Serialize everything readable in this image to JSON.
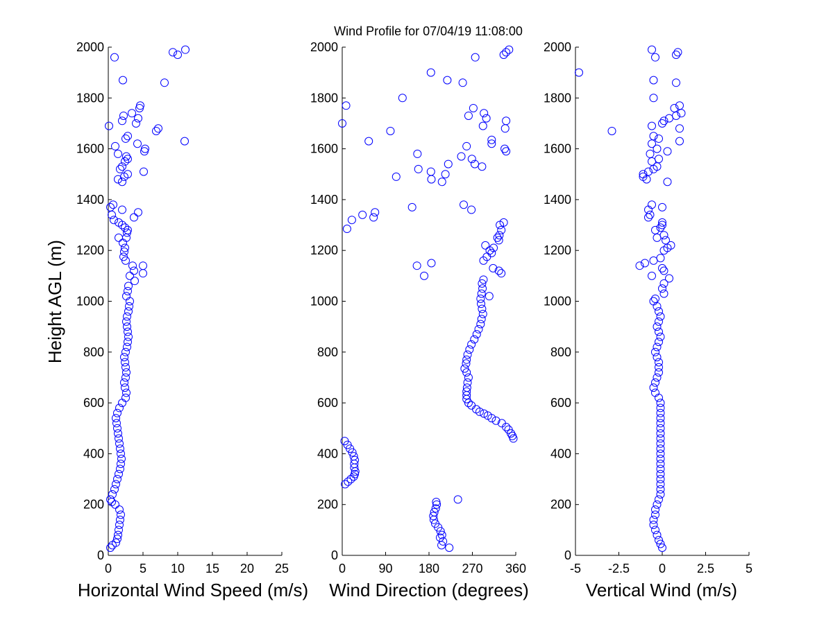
{
  "figure": {
    "title": "Wind Profile for  07/04/19 11:08:00",
    "ylabel": "Height AGL (m)"
  },
  "chart_data": [
    {
      "type": "scatter",
      "xlabel": "Horizontal Wind Speed (m/s)",
      "ylabel": "Height AGL (m)",
      "xlim": [
        0,
        25
      ],
      "ylim": [
        0,
        2000
      ],
      "xticks": [
        "0",
        "5",
        "10",
        "15",
        "20",
        "25"
      ],
      "yticks": [
        "0",
        "200",
        "400",
        "600",
        "800",
        "1000",
        "1200",
        "1400",
        "1600",
        "1800",
        "2000"
      ],
      "marker_color": "#0000ff",
      "points": [
        [
          0.3,
          30
        ],
        [
          0.6,
          40
        ],
        [
          1.1,
          50
        ],
        [
          1.3,
          65
        ],
        [
          1.4,
          80
        ],
        [
          1.5,
          100
        ],
        [
          1.6,
          120
        ],
        [
          1.7,
          140
        ],
        [
          1.8,
          160
        ],
        [
          1.6,
          180
        ],
        [
          1.0,
          200
        ],
        [
          0.5,
          210
        ],
        [
          0.3,
          220
        ],
        [
          0.6,
          240
        ],
        [
          0.9,
          260
        ],
        [
          1.1,
          280
        ],
        [
          1.3,
          300
        ],
        [
          1.5,
          320
        ],
        [
          1.7,
          340
        ],
        [
          1.8,
          360
        ],
        [
          1.9,
          380
        ],
        [
          1.8,
          400
        ],
        [
          1.7,
          420
        ],
        [
          1.6,
          440
        ],
        [
          1.5,
          460
        ],
        [
          1.4,
          480
        ],
        [
          1.3,
          500
        ],
        [
          1.2,
          520
        ],
        [
          1.1,
          540
        ],
        [
          1.3,
          560
        ],
        [
          1.6,
          580
        ],
        [
          2.0,
          600
        ],
        [
          2.5,
          620
        ],
        [
          2.6,
          640
        ],
        [
          2.4,
          660
        ],
        [
          2.3,
          680
        ],
        [
          2.5,
          700
        ],
        [
          2.6,
          720
        ],
        [
          2.5,
          740
        ],
        [
          2.4,
          760
        ],
        [
          2.3,
          780
        ],
        [
          2.5,
          800
        ],
        [
          2.7,
          820
        ],
        [
          2.8,
          840
        ],
        [
          2.9,
          860
        ],
        [
          2.8,
          880
        ],
        [
          2.7,
          900
        ],
        [
          2.6,
          920
        ],
        [
          2.7,
          940
        ],
        [
          2.9,
          960
        ],
        [
          3.0,
          980
        ],
        [
          3.1,
          1000
        ],
        [
          2.6,
          1020
        ],
        [
          2.8,
          1040
        ],
        [
          2.9,
          1060
        ],
        [
          3.8,
          1080
        ],
        [
          3.1,
          1100
        ],
        [
          5.0,
          1110
        ],
        [
          3.7,
          1120
        ],
        [
          5.0,
          1140
        ],
        [
          3.5,
          1140
        ],
        [
          2.5,
          1160
        ],
        [
          2.2,
          1175
        ],
        [
          2.3,
          1195
        ],
        [
          2.4,
          1210
        ],
        [
          2.1,
          1230
        ],
        [
          2.6,
          1250
        ],
        [
          1.5,
          1250
        ],
        [
          2.7,
          1270
        ],
        [
          2.8,
          1280
        ],
        [
          2.4,
          1290
        ],
        [
          2.0,
          1300
        ],
        [
          1.5,
          1310
        ],
        [
          0.8,
          1320
        ],
        [
          3.7,
          1330
        ],
        [
          0.5,
          1340
        ],
        [
          4.3,
          1350
        ],
        [
          2.0,
          1360
        ],
        [
          0.3,
          1370
        ],
        [
          0.7,
          1380
        ],
        [
          2.0,
          1470
        ],
        [
          1.4,
          1480
        ],
        [
          2.3,
          1490
        ],
        [
          2.8,
          1500
        ],
        [
          5.1,
          1510
        ],
        [
          1.7,
          1520
        ],
        [
          2.0,
          1530
        ],
        [
          2.4,
          1550
        ],
        [
          2.8,
          1560
        ],
        [
          2.6,
          1570
        ],
        [
          1.4,
          1580
        ],
        [
          5.2,
          1590
        ],
        [
          5.3,
          1600
        ],
        [
          1.0,
          1610
        ],
        [
          4.2,
          1620
        ],
        [
          11.0,
          1630
        ],
        [
          2.8,
          1650
        ],
        [
          2.5,
          1640
        ],
        [
          7.2,
          1680
        ],
        [
          6.9,
          1670
        ],
        [
          0.1,
          1690
        ],
        [
          4.0,
          1700
        ],
        [
          2.0,
          1710
        ],
        [
          4.3,
          1720
        ],
        [
          2.2,
          1730
        ],
        [
          3.4,
          1740
        ],
        [
          4.5,
          1760
        ],
        [
          4.6,
          1770
        ],
        [
          8.1,
          1860
        ],
        [
          2.1,
          1870
        ],
        [
          0.9,
          1960
        ],
        [
          9.3,
          1980
        ],
        [
          10.0,
          1970
        ],
        [
          11.1,
          1990
        ]
      ]
    },
    {
      "type": "scatter",
      "xlabel": "Wind Direction (degrees)",
      "xlim": [
        0,
        360
      ],
      "ylim": [
        0,
        2000
      ],
      "xticks": [
        "0",
        "90",
        "180",
        "270",
        "360"
      ],
      "yticks": [
        "0",
        "200",
        "400",
        "600",
        "800",
        "1000",
        "1200",
        "1400",
        "1600",
        "1800",
        "2000"
      ],
      "marker_color": "#0000ff",
      "points": [
        [
          222,
          30
        ],
        [
          206,
          40
        ],
        [
          209,
          55
        ],
        [
          203,
          70
        ],
        [
          207,
          80
        ],
        [
          204,
          95
        ],
        [
          199,
          110
        ],
        [
          193,
          125
        ],
        [
          190,
          140
        ],
        [
          189,
          155
        ],
        [
          191,
          170
        ],
        [
          194,
          185
        ],
        [
          196,
          200
        ],
        [
          195,
          210
        ],
        [
          240,
          220
        ],
        [
          6,
          280
        ],
        [
          12,
          290
        ],
        [
          18,
          300
        ],
        [
          24,
          310
        ],
        [
          26,
          320
        ],
        [
          27,
          330
        ],
        [
          25,
          345
        ],
        [
          25,
          360
        ],
        [
          26,
          375
        ],
        [
          24,
          390
        ],
        [
          21,
          405
        ],
        [
          16,
          420
        ],
        [
          11,
          435
        ],
        [
          5,
          450
        ],
        [
          355,
          460
        ],
        [
          353,
          470
        ],
        [
          350,
          480
        ],
        [
          345,
          495
        ],
        [
          340,
          505
        ],
        [
          331,
          520
        ],
        [
          319,
          530
        ],
        [
          310,
          540
        ],
        [
          302,
          550
        ],
        [
          294,
          558
        ],
        [
          285,
          565
        ],
        [
          278,
          575
        ],
        [
          268,
          590
        ],
        [
          262,
          600
        ],
        [
          258,
          615
        ],
        [
          258,
          630
        ],
        [
          258,
          645
        ],
        [
          259,
          660
        ],
        [
          260,
          680
        ],
        [
          262,
          700
        ],
        [
          258,
          720
        ],
        [
          254,
          735
        ],
        [
          257,
          755
        ],
        [
          258,
          770
        ],
        [
          260,
          790
        ],
        [
          264,
          810
        ],
        [
          268,
          830
        ],
        [
          274,
          850
        ],
        [
          279,
          870
        ],
        [
          283,
          890
        ],
        [
          287,
          910
        ],
        [
          289,
          930
        ],
        [
          292,
          950
        ],
        [
          290,
          970
        ],
        [
          288,
          990
        ],
        [
          287,
          1010
        ],
        [
          289,
          1030
        ],
        [
          291,
          1050
        ],
        [
          290,
          1070
        ],
        [
          293,
          1085
        ],
        [
          305,
          1020
        ],
        [
          330,
          1110
        ],
        [
          325,
          1120
        ],
        [
          313,
          1130
        ],
        [
          293,
          1160
        ],
        [
          300,
          1175
        ],
        [
          310,
          1190
        ],
        [
          306,
          1200
        ],
        [
          314,
          1210
        ],
        [
          297,
          1220
        ],
        [
          325,
          1240
        ],
        [
          322,
          1250
        ],
        [
          326,
          1260
        ],
        [
          330,
          1280
        ],
        [
          327,
          1300
        ],
        [
          335,
          1310
        ],
        [
          10,
          1285
        ],
        [
          20,
          1320
        ],
        [
          155,
          1140
        ],
        [
          170,
          1100
        ],
        [
          185,
          1150
        ],
        [
          65,
          1330
        ],
        [
          42,
          1340
        ],
        [
          68,
          1350
        ],
        [
          145,
          1370
        ],
        [
          252,
          1380
        ],
        [
          268,
          1360
        ],
        [
          112,
          1490
        ],
        [
          185,
          1480
        ],
        [
          207,
          1470
        ],
        [
          214,
          1500
        ],
        [
          220,
          1540
        ],
        [
          184,
          1510
        ],
        [
          158,
          1520
        ],
        [
          275,
          1540
        ],
        [
          290,
          1530
        ],
        [
          269,
          1560
        ],
        [
          247,
          1570
        ],
        [
          156,
          1580
        ],
        [
          340,
          1590
        ],
        [
          310,
          1620
        ],
        [
          310,
          1635
        ],
        [
          258,
          1610
        ],
        [
          100,
          1670
        ],
        [
          55,
          1630
        ],
        [
          337,
          1600
        ],
        [
          338,
          1680
        ],
        [
          292,
          1690
        ],
        [
          294,
          1740
        ],
        [
          340,
          1710
        ],
        [
          262,
          1730
        ],
        [
          299,
          1720
        ],
        [
          272,
          1760
        ],
        [
          125,
          1800
        ],
        [
          8,
          1770
        ],
        [
          0,
          1700
        ],
        [
          250,
          1860
        ],
        [
          218,
          1870
        ],
        [
          184,
          1900
        ],
        [
          276,
          1960
        ],
        [
          335,
          1970
        ],
        [
          340,
          1980
        ],
        [
          346,
          1990
        ]
      ]
    },
    {
      "type": "scatter",
      "xlabel": "Vertical Wind (m/s)",
      "xlim": [
        -5,
        5
      ],
      "ylim": [
        0,
        2000
      ],
      "xticks": [
        "-5",
        "-2.5",
        "0",
        "2.5",
        "5"
      ],
      "yticks": [
        "0",
        "200",
        "400",
        "600",
        "800",
        "1000",
        "1200",
        "1400",
        "1600",
        "1800",
        "2000"
      ],
      "marker_color": "#0000ff",
      "points": [
        [
          0.0,
          30
        ],
        [
          -0.1,
          45
        ],
        [
          -0.2,
          60
        ],
        [
          -0.3,
          80
        ],
        [
          -0.4,
          100
        ],
        [
          -0.5,
          120
        ],
        [
          -0.5,
          140
        ],
        [
          -0.4,
          160
        ],
        [
          -0.4,
          180
        ],
        [
          -0.3,
          200
        ],
        [
          -0.2,
          220
        ],
        [
          -0.1,
          240
        ],
        [
          -0.1,
          260
        ],
        [
          -0.1,
          280
        ],
        [
          -0.1,
          300
        ],
        [
          -0.1,
          320
        ],
        [
          -0.1,
          340
        ],
        [
          -0.1,
          360
        ],
        [
          -0.1,
          380
        ],
        [
          -0.1,
          400
        ],
        [
          -0.1,
          420
        ],
        [
          -0.1,
          440
        ],
        [
          -0.1,
          460
        ],
        [
          -0.1,
          480
        ],
        [
          -0.1,
          500
        ],
        [
          -0.1,
          520
        ],
        [
          -0.1,
          540
        ],
        [
          -0.1,
          560
        ],
        [
          -0.1,
          580
        ],
        [
          -0.1,
          600
        ],
        [
          -0.2,
          620
        ],
        [
          -0.4,
          640
        ],
        [
          -0.5,
          660
        ],
        [
          -0.4,
          680
        ],
        [
          -0.3,
          700
        ],
        [
          -0.2,
          720
        ],
        [
          -0.2,
          740
        ],
        [
          -0.2,
          760
        ],
        [
          -0.3,
          780
        ],
        [
          -0.4,
          800
        ],
        [
          -0.3,
          820
        ],
        [
          -0.2,
          840
        ],
        [
          -0.1,
          860
        ],
        [
          -0.2,
          880
        ],
        [
          -0.3,
          900
        ],
        [
          -0.2,
          920
        ],
        [
          -0.1,
          940
        ],
        [
          -0.2,
          960
        ],
        [
          -0.3,
          980
        ],
        [
          -0.5,
          1000
        ],
        [
          -0.4,
          1010
        ],
        [
          0.1,
          1030
        ],
        [
          0.0,
          1050
        ],
        [
          0.1,
          1070
        ],
        [
          0.4,
          1090
        ],
        [
          -0.6,
          1100
        ],
        [
          0.1,
          1120
        ],
        [
          0.0,
          1130
        ],
        [
          -1.3,
          1140
        ],
        [
          -1.0,
          1150
        ],
        [
          -0.5,
          1160
        ],
        [
          -0.1,
          1170
        ],
        [
          0.1,
          1200
        ],
        [
          0.3,
          1210
        ],
        [
          0.5,
          1220
        ],
        [
          0.2,
          1240
        ],
        [
          -0.3,
          1250
        ],
        [
          0.1,
          1260
        ],
        [
          -0.4,
          1280
        ],
        [
          -0.1,
          1290
        ],
        [
          0.0,
          1300
        ],
        [
          0.0,
          1310
        ],
        [
          -0.8,
          1330
        ],
        [
          -0.7,
          1340
        ],
        [
          -0.8,
          1360
        ],
        [
          0.0,
          1370
        ],
        [
          -0.6,
          1380
        ],
        [
          0.3,
          1470
        ],
        [
          -0.9,
          1480
        ],
        [
          -1.1,
          1490
        ],
        [
          -1.1,
          1500
        ],
        [
          -0.8,
          1510
        ],
        [
          -0.5,
          1520
        ],
        [
          -0.3,
          1530
        ],
        [
          -0.6,
          1550
        ],
        [
          -0.2,
          1560
        ],
        [
          -0.7,
          1580
        ],
        [
          0.3,
          1590
        ],
        [
          -0.3,
          1600
        ],
        [
          -0.6,
          1620
        ],
        [
          -0.2,
          1640
        ],
        [
          -0.5,
          1650
        ],
        [
          -2.9,
          1670
        ],
        [
          1.0,
          1680
        ],
        [
          -0.6,
          1690
        ],
        [
          0.0,
          1700
        ],
        [
          0.1,
          1710
        ],
        [
          0.4,
          1720
        ],
        [
          0.8,
          1730
        ],
        [
          1.1,
          1740
        ],
        [
          0.7,
          1760
        ],
        [
          1.0,
          1770
        ],
        [
          -0.5,
          1800
        ],
        [
          0.8,
          1860
        ],
        [
          -0.5,
          1870
        ],
        [
          -4.8,
          1900
        ],
        [
          -0.4,
          1960
        ],
        [
          0.8,
          1970
        ],
        [
          0.9,
          1980
        ],
        [
          -0.6,
          1990
        ],
        [
          1.0,
          1630
        ]
      ]
    }
  ]
}
